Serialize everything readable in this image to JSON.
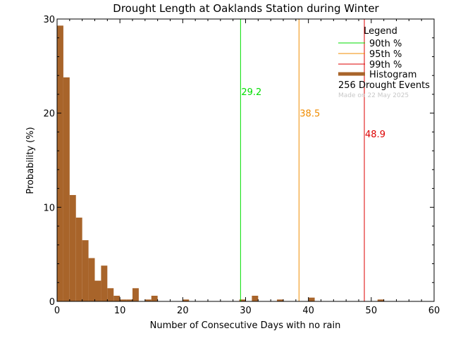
{
  "chart_data": {
    "type": "bar",
    "title": "Drought Length at Oaklands Station during Winter",
    "xlabel": "Number of Consecutive Days with no rain",
    "ylabel": "Probability (%)",
    "xlim": [
      0,
      60
    ],
    "ylim": [
      0,
      30
    ],
    "x_ticks": [
      0,
      10,
      20,
      30,
      40,
      50,
      60
    ],
    "y_ticks": [
      0,
      10,
      20,
      30
    ],
    "grid": false,
    "bin_width": 1,
    "bins": [
      {
        "x": 0,
        "value": 29.3
      },
      {
        "x": 1,
        "value": 23.8
      },
      {
        "x": 2,
        "value": 11.3
      },
      {
        "x": 3,
        "value": 8.9
      },
      {
        "x": 4,
        "value": 6.5
      },
      {
        "x": 5,
        "value": 4.6
      },
      {
        "x": 6,
        "value": 2.2
      },
      {
        "x": 7,
        "value": 3.8
      },
      {
        "x": 8,
        "value": 1.4
      },
      {
        "x": 9,
        "value": 0.6
      },
      {
        "x": 10,
        "value": 0.2
      },
      {
        "x": 11,
        "value": 0.2
      },
      {
        "x": 12,
        "value": 1.4
      },
      {
        "x": 14,
        "value": 0.2
      },
      {
        "x": 15,
        "value": 0.6
      },
      {
        "x": 20,
        "value": 0.2
      },
      {
        "x": 29,
        "value": 0.2
      },
      {
        "x": 31,
        "value": 0.6
      },
      {
        "x": 35,
        "value": 0.2
      },
      {
        "x": 40,
        "value": 0.4
      },
      {
        "x": 51,
        "value": 0.2
      }
    ],
    "percentiles": [
      {
        "name": "90th %",
        "value": 29.2,
        "label": "29.2",
        "label_y": 22.3,
        "color": "#00dd00"
      },
      {
        "name": "95th %",
        "value": 38.5,
        "label": "38.5",
        "label_y": 20.0,
        "color": "#f08c00"
      },
      {
        "name": "99th %",
        "value": 48.9,
        "label": "48.9",
        "label_y": 17.8,
        "color": "#dd0000"
      }
    ],
    "legend": {
      "title": "Legend",
      "position": "top-right",
      "histogram_label": "Histogram",
      "events_label": "256 Drought Events",
      "histogram_color": "#a8642a"
    },
    "made_on": "Made on 22 May 2025"
  }
}
